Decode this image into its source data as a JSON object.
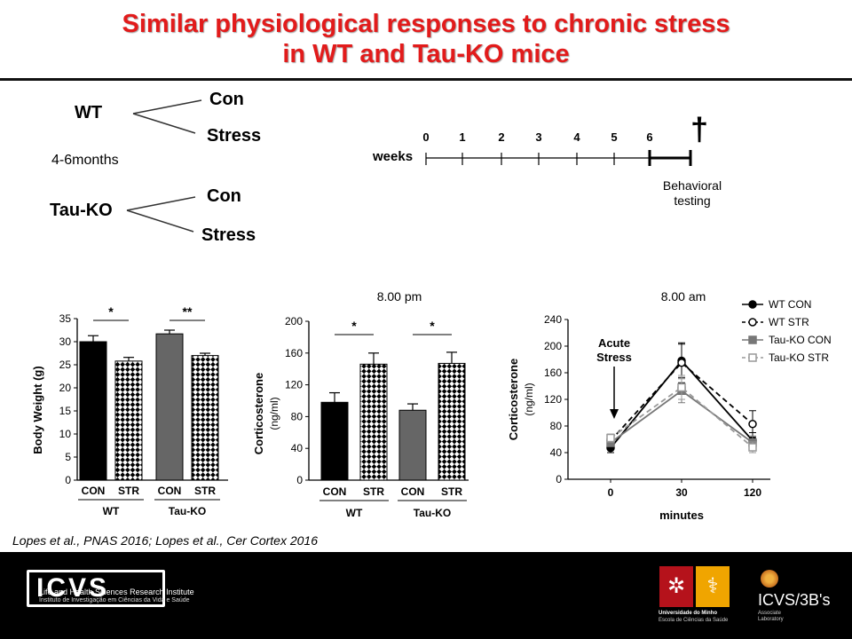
{
  "slide": {
    "title_line1": "Similar physiological responses to chronic stress",
    "title_line2": "in WT and Tau-KO mice",
    "citation": "Lopes et al., PNAS 2016; Lopes et al., Cer Cortex 2016"
  },
  "design": {
    "groups": [
      {
        "name": "WT",
        "branches": [
          "Con",
          "Stress"
        ]
      },
      {
        "name": "Tau-KO",
        "branches": [
          "Con",
          "Stress"
        ]
      }
    ],
    "age": "4-6months"
  },
  "timeline": {
    "label": "weeks",
    "ticks": [
      "0",
      "1",
      "2",
      "3",
      "4",
      "5",
      "6"
    ],
    "end_symbol": "†",
    "end_label_line1": "Behavioral",
    "end_label_line2": "testing"
  },
  "chart_data": [
    {
      "type": "bar",
      "ylabel": "Body Weight (g)",
      "ylim": [
        0,
        35
      ],
      "yticks": [
        0,
        5,
        10,
        15,
        20,
        25,
        30,
        35
      ],
      "categories": [
        "CON",
        "STR",
        "CON",
        "STR"
      ],
      "groups": [
        "WT",
        "Tau-KO"
      ],
      "values": [
        30,
        25.8,
        31.7,
        27
      ],
      "errors": [
        1.3,
        0.8,
        0.8,
        0.5
      ],
      "significance": [
        "*",
        "**"
      ],
      "bar_colors": [
        "#000000",
        "checker",
        "#666666",
        "checker"
      ]
    },
    {
      "type": "bar",
      "title": "8.00 pm",
      "ylabel": "Corticosterone",
      "ylabel_unit": "(ng/ml)",
      "ylim": [
        0,
        200
      ],
      "yticks": [
        0,
        40,
        80,
        120,
        160,
        200
      ],
      "categories": [
        "CON",
        "STR",
        "CON",
        "STR"
      ],
      "groups": [
        "WT",
        "Tau-KO"
      ],
      "values": [
        98,
        146,
        88,
        147
      ],
      "errors": [
        12,
        14,
        8,
        14
      ],
      "significance": [
        "*",
        "*"
      ],
      "bar_colors": [
        "#000000",
        "checker",
        "#666666",
        "checker"
      ]
    },
    {
      "type": "line",
      "title": "8.00 am",
      "ylabel": "Corticosterone",
      "ylabel_unit": "(ng/ml)",
      "xlabel": "minutes",
      "x": [
        "0",
        "30",
        "120"
      ],
      "ylim": [
        0,
        240
      ],
      "yticks": [
        0,
        40,
        80,
        120,
        160,
        200,
        240
      ],
      "annotation_line1": "Acute",
      "annotation_line2": "Stress",
      "series": [
        {
          "name": "WT CON",
          "values": [
            47,
            178,
            58
          ],
          "errors": [
            7,
            25,
            12
          ],
          "color": "#000000",
          "dash": "",
          "marker": "circle-filled"
        },
        {
          "name": "WT STR",
          "values": [
            58,
            175,
            83
          ],
          "errors": [
            6,
            30,
            20
          ],
          "color": "#000000",
          "dash": "6,4",
          "marker": "circle-open"
        },
        {
          "name": "Tau-KO CON",
          "values": [
            55,
            133,
            55
          ],
          "errors": [
            6,
            18,
            10
          ],
          "color": "#777777",
          "dash": "",
          "marker": "square-filled"
        },
        {
          "name": "Tau-KO STR",
          "values": [
            62,
            138,
            48
          ],
          "errors": [
            6,
            18,
            8
          ],
          "color": "#999999",
          "dash": "6,4",
          "marker": "square-open"
        }
      ]
    }
  ],
  "footer": {
    "icvs_logo": "ICVS",
    "icvs_line1": "Life and Health Sciences Research Institute",
    "icvs_line2": "Instituto de Investigação em Ciências da Vida e Saúde",
    "um_line1": "Universidade do Minho",
    "um_line2": "Escola de Ciências da Saúde",
    "icvs3bs_logo": "ICVS/3B's",
    "assoc_line1": "Associate",
    "assoc_line2": "Laboratory"
  }
}
